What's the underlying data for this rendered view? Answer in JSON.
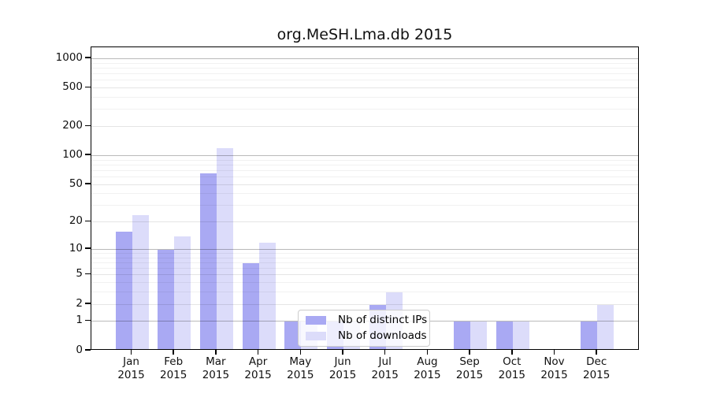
{
  "title": "org.MeSH.Lma.db 2015",
  "x_axis": {
    "months": [
      "Jan",
      "Feb",
      "Mar",
      "Apr",
      "May",
      "Jun",
      "Jul",
      "Aug",
      "Sep",
      "Oct",
      "Nov",
      "Dec"
    ],
    "year": "2015"
  },
  "y_axis": {
    "tick_labels": [
      "0",
      "1",
      "2",
      "5",
      "10",
      "20",
      "50",
      "100",
      "200",
      "500",
      "1000"
    ]
  },
  "legend": {
    "items": [
      {
        "label": "Nb of distinct IPs",
        "color": "#a9a9f3"
      },
      {
        "label": "Nb of downloads",
        "color": "#dcdcfa"
      }
    ]
  },
  "colors": {
    "distinct_ips": "#a9a9f3",
    "downloads": "#dcdcfa",
    "gridline_major": "#b9b9b9",
    "gridline_minor": "#efefef"
  },
  "chart_data": {
    "type": "bar",
    "title": "org.MeSH.Lma.db 2015",
    "categories": [
      "Jan 2015",
      "Feb 2015",
      "Mar 2015",
      "Apr 2015",
      "May 2015",
      "Jun 2015",
      "Jul 2015",
      "Aug 2015",
      "Sep 2015",
      "Oct 2015",
      "Nov 2015",
      "Dec 2015"
    ],
    "series": [
      {
        "name": "Nb of distinct IPs",
        "color": "#a9a9f3",
        "values": [
          16,
          10,
          66,
          7,
          1,
          1,
          2,
          0,
          1,
          1,
          0,
          1
        ]
      },
      {
        "name": "Nb of downloads",
        "color": "#dcdcfa",
        "values": [
          24,
          14,
          120,
          12,
          1,
          1,
          3,
          0,
          1,
          1,
          0,
          2
        ]
      }
    ],
    "xlabel": "",
    "ylabel": "",
    "y_scale": "log10(value+1)",
    "y_ticks": [
      0,
      1,
      2,
      5,
      10,
      20,
      50,
      100,
      200,
      500,
      1000
    ],
    "y_minor_gridlines": [
      3,
      4,
      6,
      7,
      8,
      9,
      30,
      40,
      60,
      70,
      80,
      90,
      300,
      400,
      600,
      700,
      800,
      900
    ],
    "ylim": [
      0,
      1300
    ],
    "grid": "horizontal",
    "legend_position": "inside lower-center"
  }
}
